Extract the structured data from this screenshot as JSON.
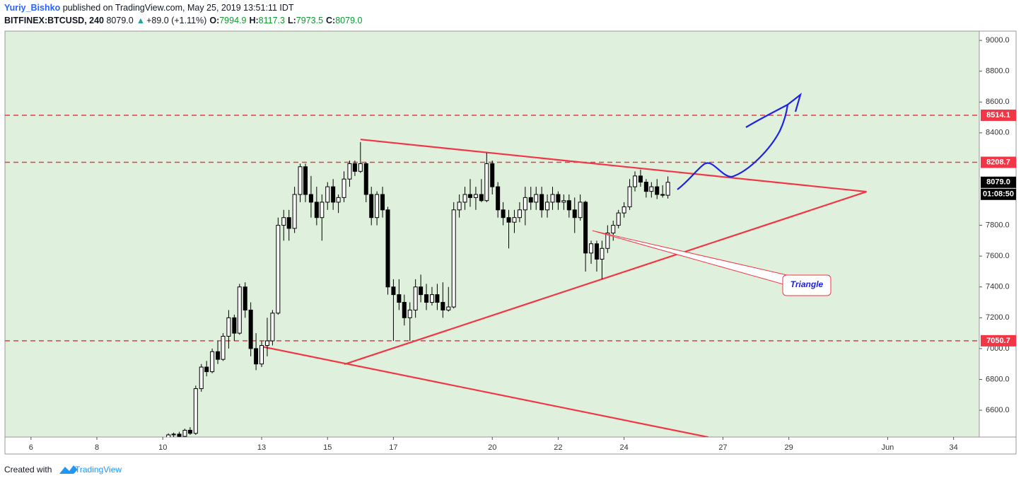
{
  "header": {
    "author": "Yuriy_Bishko",
    "published": "published on TradingView.com, May 25, 2019 13:51:11 IDT",
    "symbol": "BITFINEX:BTCUSD, 240",
    "last": "8079.0",
    "change": "+89.0 (+1.11%)",
    "ohlc": [
      {
        "label": "O:",
        "value": "7994.9"
      },
      {
        "label": "H:",
        "value": "8117.3"
      },
      {
        "label": "L:",
        "value": "7973.5"
      },
      {
        "label": "C:",
        "value": "8079.0"
      }
    ]
  },
  "footer": {
    "text": "Created with",
    "brand": "TradingView"
  },
  "chart_data": {
    "type": "candlestick",
    "xlim": [
      5.21,
      34.78
    ],
    "ylim": [
      6426,
      9060
    ],
    "xticks": [
      6,
      8,
      10,
      13,
      15,
      17,
      20,
      22,
      24,
      27,
      29,
      {
        "value": 32,
        "label": "Jun"
      },
      34
    ],
    "yticks": [
      {
        "value": 6600,
        "label": "6600.0"
      },
      {
        "value": 6800,
        "label": "6800.0"
      },
      {
        "value": 7000,
        "label": "7000.0"
      },
      {
        "value": 7200,
        "label": "7200.0"
      },
      {
        "value": 7400,
        "label": "7400.0"
      },
      {
        "value": 7600,
        "label": "7600.0"
      },
      {
        "value": 7800,
        "label": "7800.0"
      },
      {
        "value": 8400,
        "label": "8400.0"
      },
      {
        "value": 8600,
        "label": "8600.0"
      },
      {
        "value": 8800,
        "label": "8800.0"
      },
      {
        "value": 9000,
        "label": "9000.0"
      }
    ],
    "up_color": "#ffffff",
    "down_color": "#000000",
    "background": "#dff0dc",
    "x": [
      10.17,
      10.33,
      10.5,
      10.67,
      10.83,
      11,
      11.17,
      11.33,
      11.5,
      11.67,
      11.83,
      12,
      12.17,
      12.33,
      12.5,
      12.67,
      12.83,
      13,
      13.17,
      13.33,
      13.5,
      13.67,
      13.83,
      14,
      14.17,
      14.33,
      14.5,
      14.67,
      14.83,
      15,
      15.17,
      15.33,
      15.5,
      15.67,
      15.83,
      16,
      16.17,
      16.33,
      16.5,
      16.67,
      16.83,
      17,
      17.17,
      17.33,
      17.5,
      17.67,
      17.83,
      18,
      18.17,
      18.33,
      18.5,
      18.67,
      18.83,
      19,
      19.17,
      19.33,
      19.5,
      19.67,
      19.83,
      20,
      20.17,
      20.33,
      20.5,
      20.67,
      20.83,
      21,
      21.17,
      21.33,
      21.5,
      21.67,
      21.83,
      22,
      22.17,
      22.33,
      22.5,
      22.67,
      22.83,
      23,
      23.17,
      23.33,
      23.5,
      23.67,
      23.83,
      24,
      24.17,
      24.33,
      24.5,
      24.67,
      24.83,
      25,
      25.17,
      25.33
    ],
    "open": [
      6420,
      6440,
      6445,
      6430,
      6470,
      6450,
      6740,
      6880,
      6850,
      6980,
      6930,
      7080,
      7200,
      7100,
      7400,
      7250,
      7000,
      6900,
      7020,
      7050,
      7230,
      7800,
      7850,
      7780,
      8000,
      8180,
      8000,
      7950,
      7850,
      7950,
      8050,
      7950,
      7980,
      8100,
      8200,
      8150,
      8200,
      8000,
      7850,
      8000,
      7900,
      7400,
      7350,
      7300,
      7200,
      7250,
      7400,
      7350,
      7300,
      7350,
      7300,
      7250,
      7270,
      7900,
      7950,
      8000,
      7980,
      8000,
      7960,
      8200,
      8050,
      7900,
      7850,
      7820,
      7850,
      7900,
      7980,
      7950,
      8000,
      7900,
      7950,
      8000,
      7950,
      7960,
      7900,
      7850,
      7950,
      7620,
      7680,
      7580,
      7650,
      7750,
      7800,
      7880,
      7920,
      8050,
      8120,
      8080,
      8020,
      8050,
      8000,
      7994.9
    ],
    "high": [
      6450,
      6455,
      6460,
      6480,
      6490,
      6760,
      6900,
      6920,
      7000,
      7050,
      7100,
      7250,
      7220,
      7420,
      7430,
      7300,
      7100,
      7050,
      7200,
      7250,
      7850,
      7900,
      7900,
      8050,
      8200,
      8200,
      8120,
      8050,
      8000,
      8080,
      8100,
      8000,
      8150,
      8220,
      8220,
      8340,
      8210,
      8050,
      8020,
      8050,
      7920,
      7450,
      7450,
      7350,
      7300,
      7450,
      7480,
      7420,
      7400,
      7420,
      7430,
      7400,
      7950,
      8000,
      8050,
      8100,
      8050,
      8100,
      8270,
      8220,
      8080,
      7950,
      7900,
      7900,
      7950,
      8050,
      8050,
      8050,
      8050,
      8000,
      8050,
      8020,
      8000,
      8000,
      7980,
      8000,
      7960,
      7700,
      7700,
      7700,
      7800,
      7830,
      7900,
      7950,
      8100,
      8150,
      8160,
      8100,
      8080,
      8100,
      8060,
      8117.3
    ],
    "low": [
      6410,
      6425,
      6420,
      6425,
      6440,
      6440,
      6720,
      6820,
      6840,
      6900,
      6920,
      7000,
      7050,
      7090,
      7200,
      6950,
      6860,
      6880,
      6950,
      7020,
      7220,
      7700,
      7700,
      7750,
      7950,
      7950,
      7850,
      7800,
      7700,
      7900,
      7900,
      7880,
      7950,
      8050,
      8120,
      8140,
      7950,
      7800,
      7800,
      7850,
      7350,
      7050,
      7250,
      7150,
      7050,
      7200,
      7300,
      7250,
      7280,
      7250,
      7200,
      7240,
      7260,
      7850,
      7900,
      7920,
      7900,
      7950,
      7950,
      8000,
      7850,
      7800,
      7650,
      7750,
      7820,
      7800,
      7900,
      7900,
      7850,
      7850,
      7900,
      7900,
      7900,
      7850,
      7750,
      7830,
      7500,
      7550,
      7500,
      7450,
      7620,
      7700,
      7780,
      7850,
      7900,
      8020,
      8050,
      7980,
      7980,
      7970,
      7980,
      7973.5
    ],
    "close": [
      6440,
      6445,
      6430,
      6470,
      6450,
      6740,
      6880,
      6850,
      6980,
      6930,
      7080,
      7200,
      7100,
      7400,
      7250,
      7000,
      6900,
      7020,
      7050,
      7230,
      7800,
      7850,
      7780,
      8000,
      8180,
      8000,
      7950,
      7850,
      7950,
      8050,
      7950,
      7980,
      8100,
      8200,
      8150,
      8200,
      8000,
      7850,
      8000,
      7900,
      7400,
      7350,
      7300,
      7200,
      7250,
      7400,
      7350,
      7300,
      7350,
      7300,
      7250,
      7270,
      7900,
      7950,
      8000,
      7980,
      8000,
      7960,
      8200,
      8050,
      7900,
      7850,
      7820,
      7850,
      7900,
      7980,
      7950,
      8000,
      7900,
      7950,
      8000,
      7950,
      7960,
      7900,
      7850,
      7950,
      7620,
      7680,
      7580,
      7650,
      7750,
      7800,
      7880,
      7920,
      8050,
      8120,
      8080,
      8020,
      8050,
      8000,
      7994.9,
      8079
    ],
    "hlines": [
      {
        "value": 8514.1,
        "color": "#f23645"
      },
      {
        "value": 8208.7,
        "color": "#f23645"
      },
      {
        "value": 7050.7,
        "color": "#f23645"
      }
    ],
    "last_price": {
      "value": 8079,
      "label": "8079.0"
    },
    "countdown": "01:08:50",
    "trendlines": [
      {
        "points": [
          [
            16.0,
            8357
          ],
          [
            31.36,
            8018
          ]
        ],
        "color": "#f23645"
      },
      {
        "points": [
          [
            15.51,
            6898
          ],
          [
            31.36,
            8018
          ]
        ],
        "color": "#f23645"
      },
      {
        "points": [
          [
            13.0,
            7013
          ],
          [
            26.56,
            6425
          ]
        ],
        "color": "#f23645"
      }
    ],
    "annotations": [
      {
        "text": "Triangle",
        "point": [
          23.04,
          7765
        ]
      }
    ]
  }
}
